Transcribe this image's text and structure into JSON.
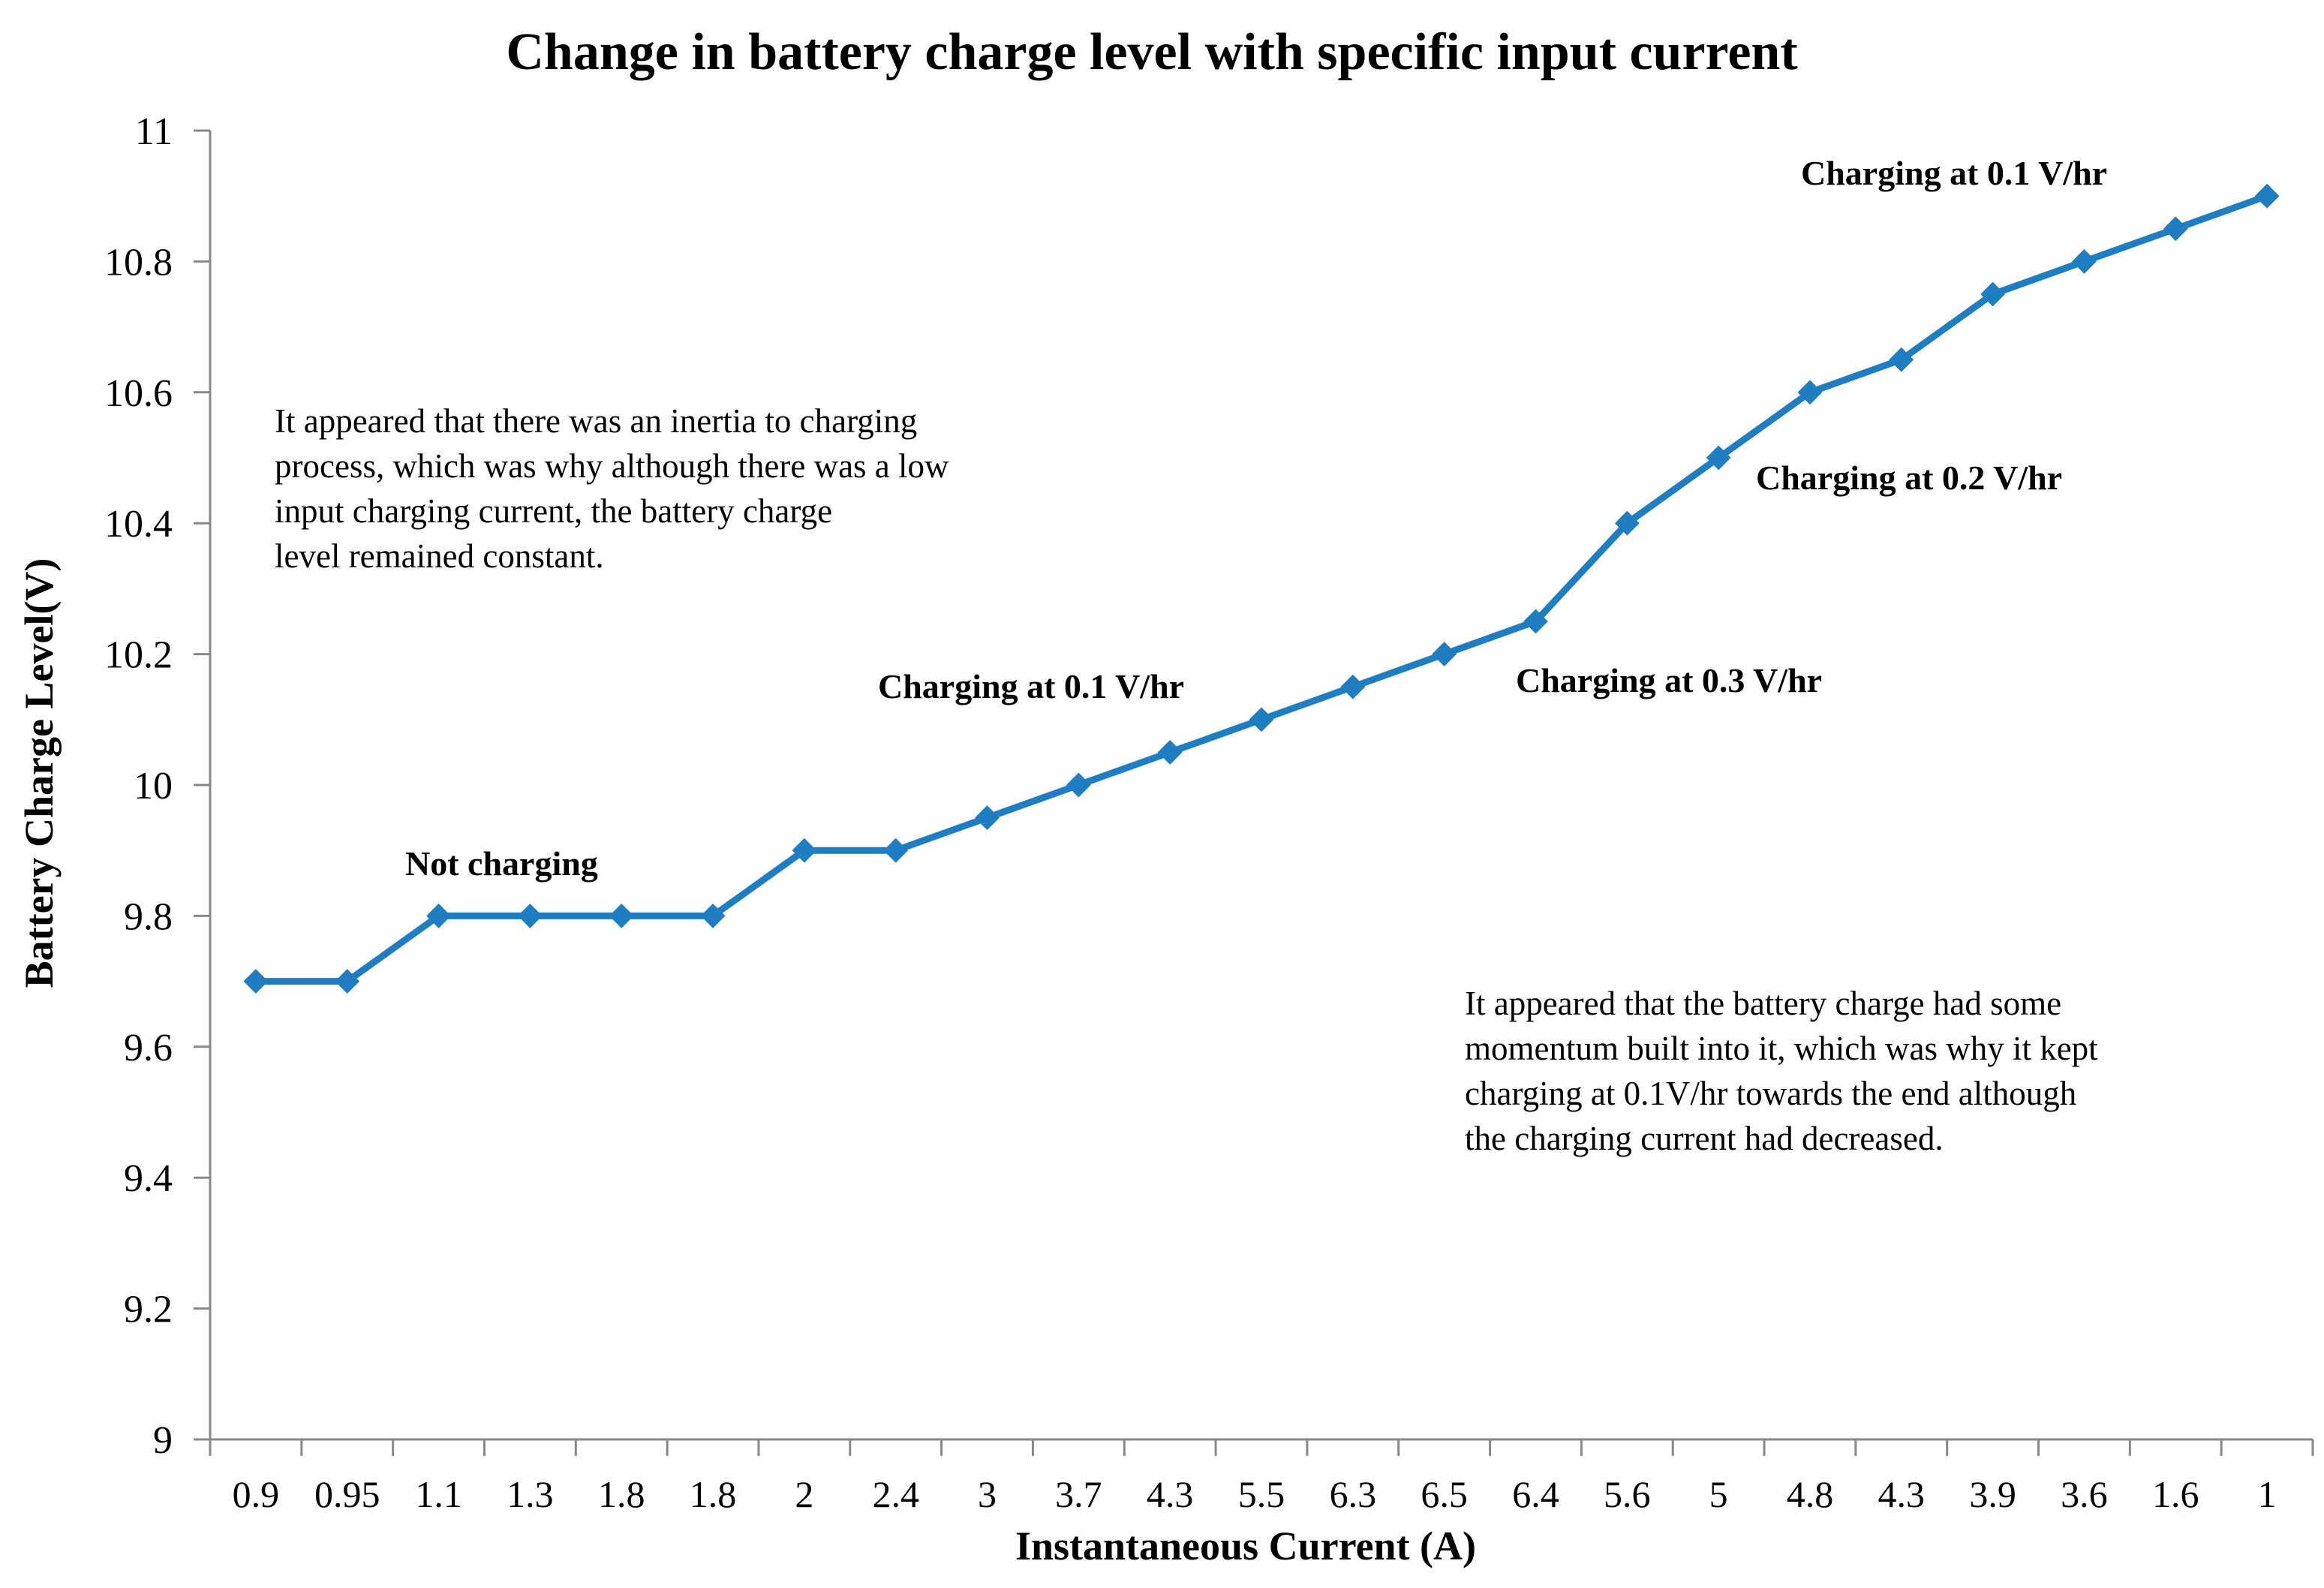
{
  "chart_data": {
    "type": "line",
    "title": "Change in battery charge level with specific input current",
    "xlabel": "Instantaneous Current (A)",
    "ylabel": "Battery Charge Level(V)",
    "ylim": [
      9,
      11
    ],
    "ytick_step": 0.2,
    "yticks": [
      "9",
      "9.2",
      "9.4",
      "9.6",
      "9.8",
      "10",
      "10.2",
      "10.4",
      "10.6",
      "10.8",
      "11"
    ],
    "categories": [
      "0.9",
      "0.95",
      "1.1",
      "1.3",
      "1.8",
      "1.8",
      "2",
      "2.4",
      "3",
      "3.7",
      "4.3",
      "5.5",
      "6.3",
      "6.5",
      "6.4",
      "5.6",
      "5",
      "4.8",
      "4.3",
      "3.9",
      "3.6",
      "1.6",
      "1"
    ],
    "series": [
      {
        "name": "Battery Charge Level",
        "color": "#1F7EC1",
        "marker": "diamond",
        "values": [
          9.7,
          9.7,
          9.8,
          9.8,
          9.8,
          9.8,
          9.9,
          9.9,
          9.95,
          10.0,
          10.05,
          10.1,
          10.15,
          10.2,
          10.25,
          10.4,
          10.5,
          10.6,
          10.65,
          10.75,
          10.8,
          10.85,
          10.9
        ]
      }
    ],
    "annotations": [
      {
        "text": "Not charging",
        "style": "bold",
        "near_category_index": 2
      },
      {
        "text": "Charging at 0.1 V/hr",
        "style": "bold",
        "near_category_index": 9
      },
      {
        "text": "Charging at 0.3 V/hr",
        "style": "bold",
        "near_category_index": 16
      },
      {
        "text": "Charging at 0.2 V/hr",
        "style": "bold",
        "near_category_index": 19
      },
      {
        "text": "Charging at 0.1 V/hr",
        "style": "bold",
        "near_category_index": 20
      }
    ],
    "notes": [
      {
        "lines": [
          "It appeared that there was an inertia to charging",
          "process, which was why although there was a low",
          "input charging current, the battery charge",
          "level remained constant."
        ]
      },
      {
        "lines": [
          "It appeared that the battery charge had some",
          "momentum built into it, which was why it kept",
          "charging at 0.1V/hr towards the end although",
          "the charging current had decreased."
        ]
      }
    ],
    "grid": false,
    "axis_color": "#888888"
  }
}
